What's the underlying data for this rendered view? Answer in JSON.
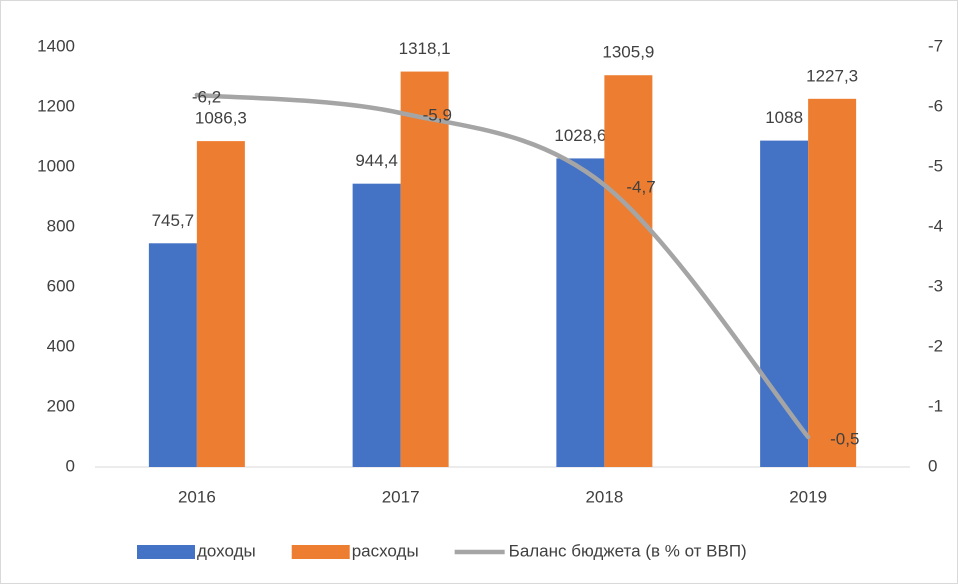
{
  "chart_data": {
    "type": "bar",
    "categories": [
      "2016",
      "2017",
      "2018",
      "2019"
    ],
    "series": [
      {
        "name": "доходы",
        "color": "#4472c4",
        "values": [
          745.7,
          944.4,
          1028.6,
          1088
        ],
        "value_labels": [
          "745,7",
          "944,4",
          "1028,6",
          "1088"
        ]
      },
      {
        "name": "расходы",
        "color": "#ed7d31",
        "values": [
          1086.3,
          1318.1,
          1305.9,
          1227.3
        ],
        "value_labels": [
          "1086,3",
          "1318,1",
          "1305,9",
          "1227,3"
        ]
      },
      {
        "name": "Баланс бюджета (в % от ВВП)",
        "type": "line",
        "axis": "y2",
        "color": "#a5a5a5",
        "values": [
          -6.2,
          -5.9,
          -4.7,
          -0.5
        ],
        "value_labels": [
          "-6,2",
          "-5,9",
          "-4,7",
          "-0,5"
        ]
      }
    ],
    "ylim": [
      0,
      1400
    ],
    "yticks": [
      0,
      200,
      400,
      600,
      800,
      1000,
      1200,
      1400
    ],
    "y2lim": [
      0,
      -7
    ],
    "y2ticks": [
      0,
      -1,
      -2,
      -3,
      -4,
      -5,
      -6,
      -7
    ],
    "legend": "bottom"
  }
}
